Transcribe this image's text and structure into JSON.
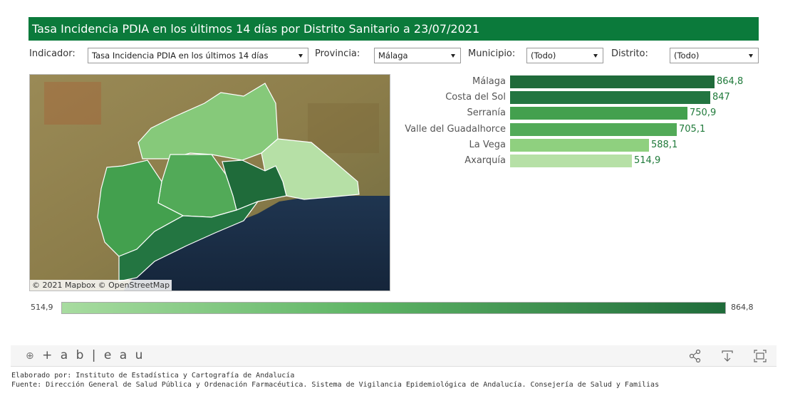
{
  "title": "Tasa Incidencia PDIA en los últimos 14 días por Distrito Sanitario a 23/07/2021",
  "filters": {
    "indicador_label": "Indicador:",
    "indicador_value": "Tasa Incidencia PDIA en los últimos 14 días",
    "provincia_label": "Provincia:",
    "provincia_value": "Málaga",
    "municipio_label": "Municipio:",
    "municipio_value": "(Todo)",
    "distrito_label": "Distrito:",
    "distrito_value": "(Todo)"
  },
  "map": {
    "attribution": "© 2021 Mapbox  © OpenStreetMap"
  },
  "chart_data": {
    "type": "bar",
    "orientation": "horizontal",
    "categories": [
      "Málaga",
      "Costa del Sol",
      "Serranía",
      "Valle del Guadalhorce",
      "La Vega",
      "Axarquía"
    ],
    "values": [
      864.8,
      847,
      750.9,
      705.1,
      588.1,
      514.9
    ],
    "value_labels": [
      "864,8",
      "847",
      "750,9",
      "705,1",
      "588,1",
      "514,9"
    ],
    "colors": [
      "#1f6b3a",
      "#237541",
      "#43a04e",
      "#52aa58",
      "#8fd07f",
      "#b6e0a6"
    ],
    "xlim": [
      0,
      864.8
    ]
  },
  "legend": {
    "min_label": "514,9",
    "max_label": "864,8",
    "min_color": "#a8dca0",
    "max_color": "#1f6b3a"
  },
  "footer": {
    "logo": "+ a b | e a u",
    "credit_line1": "Elaborado por: Instituto de Estadística y Cartografía de Andalucía",
    "credit_line2": "Fuente: Dirección General de Salud Pública y Ordenación Farmacéutica. Sistema de Vigilancia Epidemiológica de Andalucía. Consejería de Salud y Familias"
  }
}
